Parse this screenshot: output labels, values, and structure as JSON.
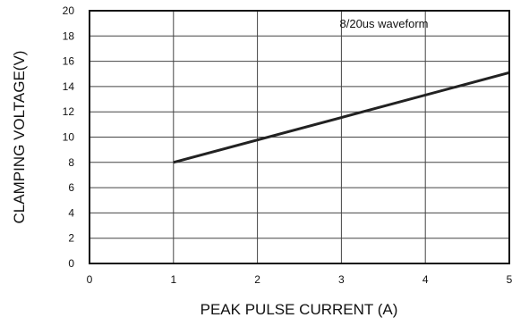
{
  "chart_data": {
    "type": "line",
    "xlabel": "PEAK PULSE CURRENT (A)",
    "ylabel": "CLAMPING VOLTAGE(V)",
    "annotation": "8/20us waveform",
    "xlim": [
      0,
      5
    ],
    "ylim": [
      0,
      20
    ],
    "x_ticks": [
      "0",
      "1",
      "2",
      "3",
      "4",
      "5"
    ],
    "y_ticks": [
      "0",
      "2",
      "4",
      "6",
      "8",
      "10",
      "12",
      "14",
      "16",
      "18",
      "20"
    ],
    "grid": true,
    "series": [
      {
        "x": [
          1,
          5
        ],
        "y": [
          8.0,
          15.1
        ],
        "color": "#222222"
      }
    ]
  }
}
